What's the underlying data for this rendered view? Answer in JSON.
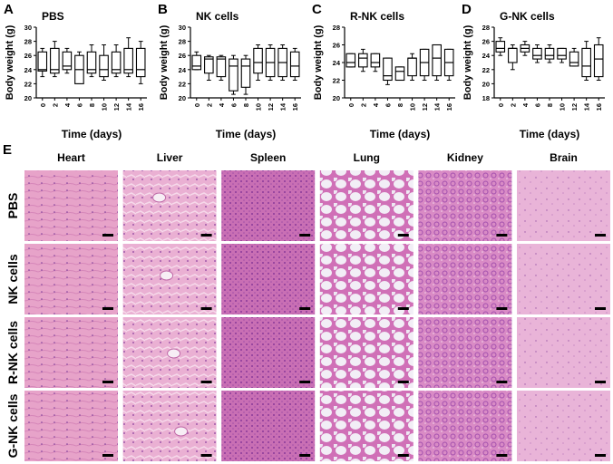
{
  "chart_data": [
    {
      "type": "box",
      "panel": "A",
      "title": "PBS",
      "ylabel": "Body weight (g)",
      "xlabel": "Time (days)",
      "categories": [
        "0",
        "2",
        "4",
        "6",
        "8",
        "10",
        "12",
        "14",
        "16"
      ],
      "min": [
        23,
        23,
        23.5,
        22,
        23,
        22.5,
        23,
        23,
        22
      ],
      "q1": [
        23.8,
        23.5,
        24,
        22,
        23.5,
        23,
        23.5,
        23.5,
        23
      ],
      "median": [
        24,
        24,
        24.5,
        24,
        24,
        24,
        24,
        24,
        24
      ],
      "q3": [
        26.5,
        27,
        26.5,
        26,
        26.5,
        26,
        26.5,
        27,
        27
      ],
      "max": [
        27,
        28,
        27,
        26.5,
        27.5,
        27.5,
        27.5,
        28.5,
        28
      ],
      "ylim": [
        20,
        30
      ],
      "yticks": [
        20,
        22,
        24,
        26,
        28,
        30
      ]
    },
    {
      "type": "box",
      "panel": "B",
      "title": "NK cells",
      "ylabel": "Body weight (g)",
      "xlabel": "Time (days)",
      "categories": [
        "0",
        "2",
        "4",
        "6",
        "8",
        "10",
        "12",
        "14",
        "16"
      ],
      "min": [
        24,
        22.5,
        22.5,
        20.5,
        20.5,
        22.5,
        22.5,
        22.5,
        22.5
      ],
      "q1": [
        24,
        23.5,
        23,
        21,
        21.5,
        23.5,
        23,
        23,
        23
      ],
      "median": [
        24.5,
        25.5,
        25.5,
        24.5,
        24.5,
        25,
        25,
        25,
        24.5
      ],
      "q3": [
        26,
        25.8,
        25.8,
        25.5,
        25.5,
        27,
        27,
        27,
        26.5
      ],
      "max": [
        26.5,
        26,
        26,
        26,
        26,
        27.5,
        27.5,
        27.5,
        27
      ],
      "ylim": [
        20,
        30
      ],
      "yticks": [
        20,
        22,
        24,
        26,
        28,
        30
      ]
    },
    {
      "type": "box",
      "panel": "C",
      "title": "R-NK cells",
      "ylabel": "Body weight (g)",
      "xlabel": "Time (days)",
      "categories": [
        "0",
        "2",
        "4",
        "6",
        "8",
        "10",
        "12",
        "14",
        "16"
      ],
      "min": [
        23.5,
        23,
        23,
        21.5,
        22,
        22,
        22,
        22,
        22
      ],
      "q1": [
        23.5,
        23.5,
        23.5,
        22,
        22,
        22.5,
        22.5,
        22.5,
        22.5
      ],
      "median": [
        24,
        24.5,
        24,
        22.5,
        23,
        24.5,
        24,
        24.5,
        24
      ],
      "q3": [
        25,
        25,
        25,
        24.5,
        23.5,
        24.5,
        25.5,
        26,
        25.5
      ],
      "max": [
        25,
        25.5,
        25,
        24.5,
        23.5,
        25,
        25.5,
        26,
        25.5
      ],
      "ylim": [
        20,
        28
      ],
      "yticks": [
        20,
        22,
        24,
        26,
        28
      ]
    },
    {
      "type": "box",
      "panel": "D",
      "title": "G-NK cells",
      "ylabel": "Body weight (g)",
      "xlabel": "Time (days)",
      "categories": [
        "0",
        "2",
        "4",
        "6",
        "8",
        "10",
        "12",
        "14",
        "16"
      ],
      "min": [
        24,
        22,
        24,
        23,
        23,
        23,
        22.5,
        20.5,
        20.5
      ],
      "q1": [
        24.5,
        23,
        24.5,
        23.5,
        23.5,
        23.5,
        22.5,
        21,
        21
      ],
      "median": [
        25,
        25,
        25,
        24,
        24,
        24,
        23,
        22.5,
        23.5
      ],
      "q3": [
        26,
        25,
        25.5,
        25,
        25,
        25,
        24.5,
        25,
        25.5
      ],
      "max": [
        26.5,
        25.5,
        26,
        25.5,
        25.5,
        25,
        25,
        26,
        26.5
      ],
      "ylim": [
        18,
        28
      ],
      "yticks": [
        18,
        20,
        22,
        24,
        26,
        28
      ]
    }
  ],
  "panel_e": {
    "label": "E",
    "columns": [
      "Heart",
      "Liver",
      "Spleen",
      "Lung",
      "Kidney",
      "Brain"
    ],
    "rows": [
      "PBS",
      "NK cells",
      "R-NK cells",
      "G-NK cells"
    ]
  }
}
